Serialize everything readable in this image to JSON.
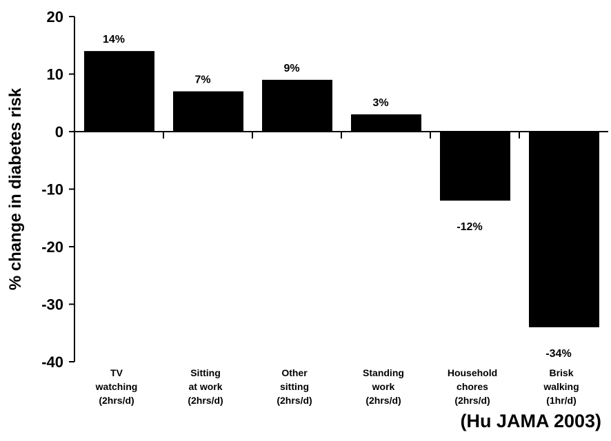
{
  "chart_data": {
    "type": "bar",
    "categories": [
      [
        "TV",
        "watching",
        "(2hrs/d)"
      ],
      [
        "Sitting",
        "at work",
        "(2hrs/d)"
      ],
      [
        "Other",
        "sitting",
        "(2hrs/d)"
      ],
      [
        "Standing",
        "work",
        "(2hrs/d)"
      ],
      [
        "Household",
        "chores",
        "(2hrs/d)"
      ],
      [
        "Brisk",
        "walking",
        "(1hr/d)"
      ]
    ],
    "values": [
      14,
      7,
      9,
      3,
      -12,
      -34
    ],
    "data_labels": [
      "14%",
      "7%",
      "9%",
      "3%",
      "-12%",
      "-34%"
    ],
    "ylabel": "% change in diabetes risk",
    "xlabel": "",
    "ylim": [
      -40,
      20
    ],
    "yticks": [
      20,
      10,
      0,
      -10,
      -20,
      -30,
      -40
    ],
    "bar_color": "#000000",
    "grid": false
  },
  "source": "(Hu JAMA 2003)"
}
